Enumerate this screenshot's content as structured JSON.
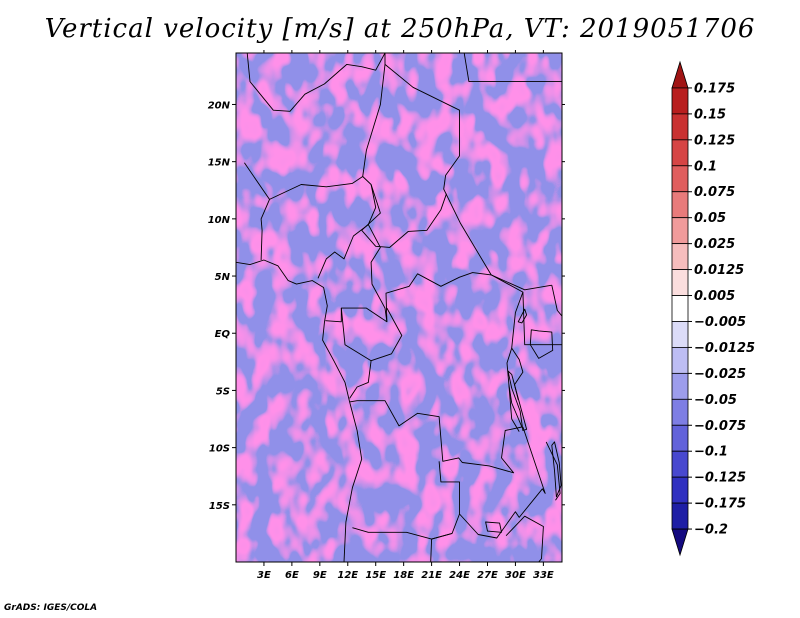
{
  "title": "Vertical velocity [m/s] at 250hPa, VT: 2019051706",
  "credit": "GrADS: IGES/COLA",
  "chart_data": {
    "type": "heatmap",
    "title": "Vertical velocity [m/s] at 250hPa, VT: 2019051706",
    "variable": "Vertical velocity",
    "units": "m/s",
    "level": "250hPa",
    "valid_time": "2019051706",
    "xlim": [
      0,
      35
    ],
    "ylim": [
      -20,
      24.5
    ],
    "x_ticks": [
      {
        "value": 3,
        "label": "3E"
      },
      {
        "value": 6,
        "label": "6E"
      },
      {
        "value": 9,
        "label": "9E"
      },
      {
        "value": 12,
        "label": "12E"
      },
      {
        "value": 15,
        "label": "15E"
      },
      {
        "value": 18,
        "label": "18E"
      },
      {
        "value": 21,
        "label": "21E"
      },
      {
        "value": 24,
        "label": "24E"
      },
      {
        "value": 27,
        "label": "27E"
      },
      {
        "value": 30,
        "label": "30E"
      },
      {
        "value": 33,
        "label": "33E"
      }
    ],
    "y_ticks": [
      {
        "value": 20,
        "label": "20N"
      },
      {
        "value": 15,
        "label": "15N"
      },
      {
        "value": 10,
        "label": "10N"
      },
      {
        "value": 5,
        "label": "5N"
      },
      {
        "value": 0,
        "label": "EQ"
      },
      {
        "value": -5,
        "label": "5S"
      },
      {
        "value": -10,
        "label": "10S"
      },
      {
        "value": -15,
        "label": "15S"
      }
    ],
    "colorbar": {
      "levels": [
        0.175,
        0.15,
        0.125,
        0.1,
        0.075,
        0.05,
        0.025,
        0.0125,
        0.005,
        -0.005,
        -0.0125,
        -0.025,
        -0.05,
        -0.075,
        -0.1,
        -0.125,
        -0.175,
        -0.2
      ],
      "labels": [
        "0.175",
        "0.15",
        "0.125",
        "0.1",
        "0.075",
        "0.05",
        "0.025",
        "0.0125",
        "0.005",
        "−0.005",
        "−0.0125",
        "−0.025",
        "−0.05",
        "−0.075",
        "−0.1",
        "−0.125",
        "−0.175",
        "−0.2"
      ],
      "colors": [
        "#a01414",
        "#b81e1e",
        "#c93131",
        "#d64545",
        "#e05e5e",
        "#e87b7b",
        "#f09b9b",
        "#f6bdbd",
        "#fbdede",
        "#ffffff",
        "#dcdcf8",
        "#bdbdf3",
        "#9d9dec",
        "#7e7ee4",
        "#6262da",
        "#4848cf",
        "#3030c0",
        "#1e1ea5",
        "#140a80"
      ]
    },
    "field_colors": {
      "strong_up": "#c93131",
      "up": "#f09b9b",
      "weak_up": "#fbdede",
      "neutral": "#ffffff",
      "weak_down": "#dcdcf8",
      "down": "#9d9dec",
      "strong_down": "#4848cf"
    },
    "features": [
      "Africa country borders",
      "coastlines",
      "small-scale banded ascent/descent pattern"
    ]
  }
}
